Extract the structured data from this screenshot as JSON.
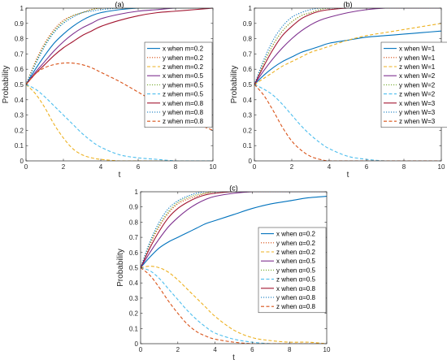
{
  "chart_data": [
    {
      "type": "line",
      "title": "(a)",
      "xlabel": "t",
      "ylabel": "Probability",
      "xlim": [
        0,
        10
      ],
      "ylim": [
        0,
        1
      ],
      "xticks": [
        "0",
        "2",
        "4",
        "6",
        "8",
        "10"
      ],
      "yticks": [
        "0",
        "0.1",
        "0.2",
        "0.3",
        "0.4",
        "0.5",
        "0.6",
        "0.7",
        "0.8",
        "0.9",
        "1"
      ],
      "legend_position": "center-right",
      "series": [
        {
          "name": "x when m=0.2",
          "color": "#0072BD",
          "dash": "solid",
          "x": [
            0,
            0.5,
            1,
            1.5,
            2,
            2.5,
            3,
            3.5,
            4,
            5,
            6,
            7,
            8,
            9,
            10
          ],
          "y": [
            0.5,
            0.6,
            0.69,
            0.77,
            0.83,
            0.88,
            0.92,
            0.95,
            0.97,
            0.99,
            1,
            1,
            1,
            1,
            1
          ]
        },
        {
          "name": "y when m=0.2",
          "color": "#D95319",
          "dash": "dotted",
          "x": [
            0,
            0.5,
            1,
            1.5,
            2,
            2.5,
            3,
            3.5,
            4,
            5,
            6,
            7,
            8,
            9,
            10
          ],
          "y": [
            0.5,
            0.65,
            0.77,
            0.86,
            0.92,
            0.95,
            0.97,
            0.99,
            1,
            1,
            1,
            1,
            1,
            1,
            1
          ]
        },
        {
          "name": "z when m=0.2",
          "color": "#EDB120",
          "dash": "dashed",
          "x": [
            0,
            0.5,
            1,
            1.5,
            2,
            2.5,
            3,
            3.5,
            4,
            5,
            6,
            7,
            8,
            9,
            10
          ],
          "y": [
            0.5,
            0.44,
            0.35,
            0.24,
            0.15,
            0.08,
            0.04,
            0.02,
            0.01,
            0,
            0,
            0,
            0,
            0,
            0
          ]
        },
        {
          "name": "x when m=0.5",
          "color": "#7E2F8E",
          "dash": "solid",
          "x": [
            0,
            0.5,
            1,
            1.5,
            2,
            2.5,
            3,
            3.5,
            4,
            5,
            6,
            7,
            8,
            9,
            10
          ],
          "y": [
            0.5,
            0.58,
            0.65,
            0.72,
            0.78,
            0.83,
            0.87,
            0.9,
            0.93,
            0.96,
            0.98,
            0.99,
            1,
            1,
            1
          ]
        },
        {
          "name": "y when m=0.5",
          "color": "#77AC30",
          "dash": "dotted",
          "x": [
            0,
            0.5,
            1,
            1.5,
            2,
            2.5,
            3,
            3.5,
            4,
            5,
            6,
            7,
            8,
            9,
            10
          ],
          "y": [
            0.5,
            0.64,
            0.76,
            0.85,
            0.91,
            0.95,
            0.97,
            0.99,
            1,
            1,
            1,
            1,
            1,
            1,
            1
          ]
        },
        {
          "name": "z when m=0.5",
          "color": "#4DBEEE",
          "dash": "dashed",
          "x": [
            0,
            0.5,
            1,
            1.5,
            2,
            2.5,
            3,
            3.5,
            4,
            5,
            6,
            7,
            8,
            9,
            10
          ],
          "y": [
            0.5,
            0.47,
            0.42,
            0.36,
            0.3,
            0.24,
            0.18,
            0.13,
            0.09,
            0.04,
            0.02,
            0.01,
            0,
            0,
            0
          ]
        },
        {
          "name": "x when m=0.8",
          "color": "#A2142F",
          "dash": "solid",
          "x": [
            0,
            0.5,
            1,
            1.5,
            2,
            2.5,
            3,
            3.5,
            4,
            5,
            6,
            7,
            8,
            9,
            10
          ],
          "y": [
            0.5,
            0.57,
            0.63,
            0.69,
            0.74,
            0.78,
            0.82,
            0.85,
            0.88,
            0.92,
            0.95,
            0.97,
            0.98,
            0.99,
            1
          ]
        },
        {
          "name": "y when m=0.8",
          "color": "#0072BD",
          "dash": "dotted",
          "x": [
            0,
            0.5,
            1,
            1.5,
            2,
            2.5,
            3,
            3.5,
            4,
            5,
            6,
            7,
            8,
            9,
            10
          ],
          "y": [
            0.5,
            0.63,
            0.75,
            0.84,
            0.9,
            0.94,
            0.97,
            0.98,
            0.99,
            1,
            1,
            1,
            1,
            1,
            1
          ]
        },
        {
          "name": "z when m=0.8",
          "color": "#D95319",
          "dash": "dashed",
          "x": [
            0,
            0.5,
            1,
            1.5,
            2,
            2.5,
            3,
            3.5,
            4,
            5,
            6,
            7,
            8,
            9,
            10
          ],
          "y": [
            0.5,
            0.57,
            0.61,
            0.63,
            0.64,
            0.64,
            0.63,
            0.61,
            0.58,
            0.52,
            0.45,
            0.38,
            0.31,
            0.25,
            0.2
          ]
        }
      ]
    },
    {
      "type": "line",
      "title": "(b)",
      "xlabel": "t",
      "ylabel": "Probability",
      "xlim": [
        0,
        10
      ],
      "ylim": [
        0,
        1
      ],
      "xticks": [
        "0",
        "2",
        "4",
        "6",
        "8",
        "10"
      ],
      "yticks": [
        "0",
        "0.1",
        "0.2",
        "0.3",
        "0.4",
        "0.5",
        "0.6",
        "0.7",
        "0.8",
        "0.9",
        "1"
      ],
      "legend_position": "center-right",
      "series": [
        {
          "name": "x when W=1",
          "color": "#0072BD",
          "dash": "solid",
          "x": [
            0,
            0.5,
            1,
            1.5,
            2,
            2.5,
            3,
            3.5,
            4,
            5,
            6,
            7,
            8,
            9,
            10
          ],
          "y": [
            0.5,
            0.56,
            0.61,
            0.65,
            0.68,
            0.71,
            0.73,
            0.75,
            0.77,
            0.79,
            0.81,
            0.82,
            0.83,
            0.84,
            0.85
          ]
        },
        {
          "name": "y when W=1",
          "color": "#D95319",
          "dash": "dotted",
          "x": [
            0,
            0.5,
            1,
            1.5,
            2,
            2.5,
            3,
            3.5,
            4,
            5,
            6,
            7,
            8,
            9,
            10
          ],
          "y": [
            0.5,
            0.64,
            0.76,
            0.85,
            0.91,
            0.95,
            0.97,
            0.99,
            1,
            1,
            1,
            1,
            1,
            1,
            1
          ]
        },
        {
          "name": "z when W=1",
          "color": "#EDB120",
          "dash": "dashed",
          "x": [
            0,
            0.5,
            1,
            1.5,
            2,
            2.5,
            3,
            3.5,
            4,
            5,
            6,
            7,
            8,
            9,
            10
          ],
          "y": [
            0.5,
            0.54,
            0.58,
            0.62,
            0.65,
            0.68,
            0.71,
            0.73,
            0.75,
            0.79,
            0.82,
            0.84,
            0.86,
            0.88,
            0.9
          ]
        },
        {
          "name": "x when W=2",
          "color": "#7E2F8E",
          "dash": "solid",
          "x": [
            0,
            0.5,
            1,
            1.5,
            2,
            2.5,
            3,
            3.5,
            4,
            5,
            6,
            7,
            8,
            9,
            10
          ],
          "y": [
            0.5,
            0.59,
            0.67,
            0.74,
            0.8,
            0.85,
            0.89,
            0.92,
            0.94,
            0.97,
            0.99,
            1,
            1,
            1,
            1
          ]
        },
        {
          "name": "y when W=2",
          "color": "#77AC30",
          "dash": "dotted",
          "x": [
            0,
            0.5,
            1,
            1.5,
            2,
            2.5,
            3,
            3.5,
            4,
            5,
            6,
            7,
            8,
            9,
            10
          ],
          "y": [
            0.5,
            0.64,
            0.76,
            0.85,
            0.91,
            0.95,
            0.97,
            0.99,
            1,
            1,
            1,
            1,
            1,
            1,
            1
          ]
        },
        {
          "name": "z when W=2",
          "color": "#4DBEEE",
          "dash": "dashed",
          "x": [
            0,
            0.5,
            1,
            1.5,
            2,
            2.5,
            3,
            3.5,
            4,
            5,
            6,
            7,
            8,
            9,
            10
          ],
          "y": [
            0.5,
            0.47,
            0.43,
            0.37,
            0.3,
            0.23,
            0.17,
            0.12,
            0.08,
            0.03,
            0.01,
            0,
            0,
            0,
            0
          ]
        },
        {
          "name": "x when W=3",
          "color": "#A2142F",
          "dash": "solid",
          "x": [
            0,
            0.5,
            1,
            1.5,
            2,
            2.5,
            3,
            3.5,
            4,
            5,
            6,
            7,
            8,
            9,
            10
          ],
          "y": [
            0.5,
            0.62,
            0.73,
            0.82,
            0.88,
            0.93,
            0.96,
            0.98,
            0.99,
            1,
            1,
            1,
            1,
            1,
            1
          ]
        },
        {
          "name": "y when W=3",
          "color": "#0072BD",
          "dash": "dotted",
          "x": [
            0,
            0.5,
            1,
            1.5,
            2,
            2.5,
            3,
            3.5,
            4,
            5,
            6,
            7,
            8,
            9,
            10
          ],
          "y": [
            0.5,
            0.66,
            0.79,
            0.88,
            0.94,
            0.97,
            0.99,
            1,
            1,
            1,
            1,
            1,
            1,
            1,
            1
          ]
        },
        {
          "name": "z when W=3",
          "color": "#D95319",
          "dash": "dashed",
          "x": [
            0,
            0.5,
            1,
            1.5,
            2,
            2.5,
            3,
            3.5,
            4,
            5,
            6,
            7,
            8,
            9,
            10
          ],
          "y": [
            0.5,
            0.43,
            0.33,
            0.22,
            0.13,
            0.07,
            0.03,
            0.01,
            0,
            0,
            0,
            0,
            0,
            0,
            0
          ]
        }
      ]
    },
    {
      "type": "line",
      "title": "(c)",
      "xlabel": "t",
      "ylabel": "Probability",
      "xlim": [
        0,
        10
      ],
      "ylim": [
        0,
        1
      ],
      "xticks": [
        "0",
        "2",
        "4",
        "6",
        "8",
        "10"
      ],
      "yticks": [
        "0",
        "0.1",
        "0.2",
        "0.3",
        "0.4",
        "0.5",
        "0.6",
        "0.7",
        "0.8",
        "0.9",
        "1"
      ],
      "legend_position": "center-right",
      "series": [
        {
          "name": "x when α=0.2",
          "color": "#0072BD",
          "dash": "solid",
          "x": [
            0,
            0.5,
            1,
            1.5,
            2,
            2.5,
            3,
            3.5,
            4,
            5,
            6,
            7,
            8,
            9,
            10
          ],
          "y": [
            0.5,
            0.57,
            0.63,
            0.67,
            0.7,
            0.73,
            0.76,
            0.79,
            0.81,
            0.85,
            0.89,
            0.92,
            0.94,
            0.96,
            0.97
          ]
        },
        {
          "name": "y when α=0.2",
          "color": "#D95319",
          "dash": "dotted",
          "x": [
            0,
            0.5,
            1,
            1.5,
            2,
            2.5,
            3,
            3.5,
            4,
            5,
            6,
            7,
            8,
            9,
            10
          ],
          "y": [
            0.5,
            0.65,
            0.77,
            0.86,
            0.92,
            0.95,
            0.97,
            0.99,
            1,
            1,
            1,
            1,
            1,
            1,
            1
          ]
        },
        {
          "name": "z when α=0.2",
          "color": "#EDB120",
          "dash": "dashed",
          "x": [
            0,
            0.5,
            1,
            1.5,
            2,
            2.5,
            3,
            3.5,
            4,
            5,
            6,
            7,
            8,
            9,
            10
          ],
          "y": [
            0.5,
            0.51,
            0.5,
            0.47,
            0.42,
            0.36,
            0.3,
            0.24,
            0.18,
            0.09,
            0.04,
            0.02,
            0.01,
            0.01,
            0
          ]
        },
        {
          "name": "x when α=0.5",
          "color": "#7E2F8E",
          "dash": "solid",
          "x": [
            0,
            0.5,
            1,
            1.5,
            2,
            2.5,
            3,
            3.5,
            4,
            5,
            6,
            7,
            8,
            9,
            10
          ],
          "y": [
            0.5,
            0.6,
            0.69,
            0.77,
            0.83,
            0.88,
            0.92,
            0.95,
            0.97,
            0.99,
            1,
            1,
            1,
            1,
            1
          ]
        },
        {
          "name": "y when α=0.5",
          "color": "#77AC30",
          "dash": "dotted",
          "x": [
            0,
            0.5,
            1,
            1.5,
            2,
            2.5,
            3,
            3.5,
            4,
            5,
            6,
            7,
            8,
            9,
            10
          ],
          "y": [
            0.5,
            0.66,
            0.78,
            0.87,
            0.93,
            0.96,
            0.98,
            0.99,
            1,
            1,
            1,
            1,
            1,
            1,
            1
          ]
        },
        {
          "name": "z when α=0.5",
          "color": "#4DBEEE",
          "dash": "dashed",
          "x": [
            0,
            0.5,
            1,
            1.5,
            2,
            2.5,
            3,
            3.5,
            4,
            5,
            6,
            7,
            8,
            9,
            10
          ],
          "y": [
            0.5,
            0.48,
            0.43,
            0.36,
            0.29,
            0.22,
            0.16,
            0.11,
            0.07,
            0.03,
            0.01,
            0,
            0,
            0,
            0
          ]
        },
        {
          "name": "x when α=0.8",
          "color": "#A2142F",
          "dash": "solid",
          "x": [
            0,
            0.5,
            1,
            1.5,
            2,
            2.5,
            3,
            3.5,
            4,
            5,
            6,
            7,
            8,
            9,
            10
          ],
          "y": [
            0.5,
            0.63,
            0.74,
            0.83,
            0.89,
            0.93,
            0.96,
            0.98,
            0.99,
            1,
            1,
            1,
            1,
            1,
            1
          ]
        },
        {
          "name": "y when α=0.8",
          "color": "#0072BD",
          "dash": "dotted",
          "x": [
            0,
            0.5,
            1,
            1.5,
            2,
            2.5,
            3,
            3.5,
            4,
            5,
            6,
            7,
            8,
            9,
            10
          ],
          "y": [
            0.5,
            0.67,
            0.8,
            0.89,
            0.94,
            0.97,
            0.99,
            1,
            1,
            1,
            1,
            1,
            1,
            1,
            1
          ]
        },
        {
          "name": "z when α=0.8",
          "color": "#D95319",
          "dash": "dashed",
          "x": [
            0,
            0.5,
            1,
            1.5,
            2,
            2.5,
            3,
            3.5,
            4,
            5,
            6,
            7,
            8,
            9,
            10
          ],
          "y": [
            0.5,
            0.45,
            0.37,
            0.28,
            0.2,
            0.13,
            0.08,
            0.05,
            0.03,
            0.01,
            0,
            0,
            0,
            0,
            0
          ]
        }
      ]
    }
  ]
}
